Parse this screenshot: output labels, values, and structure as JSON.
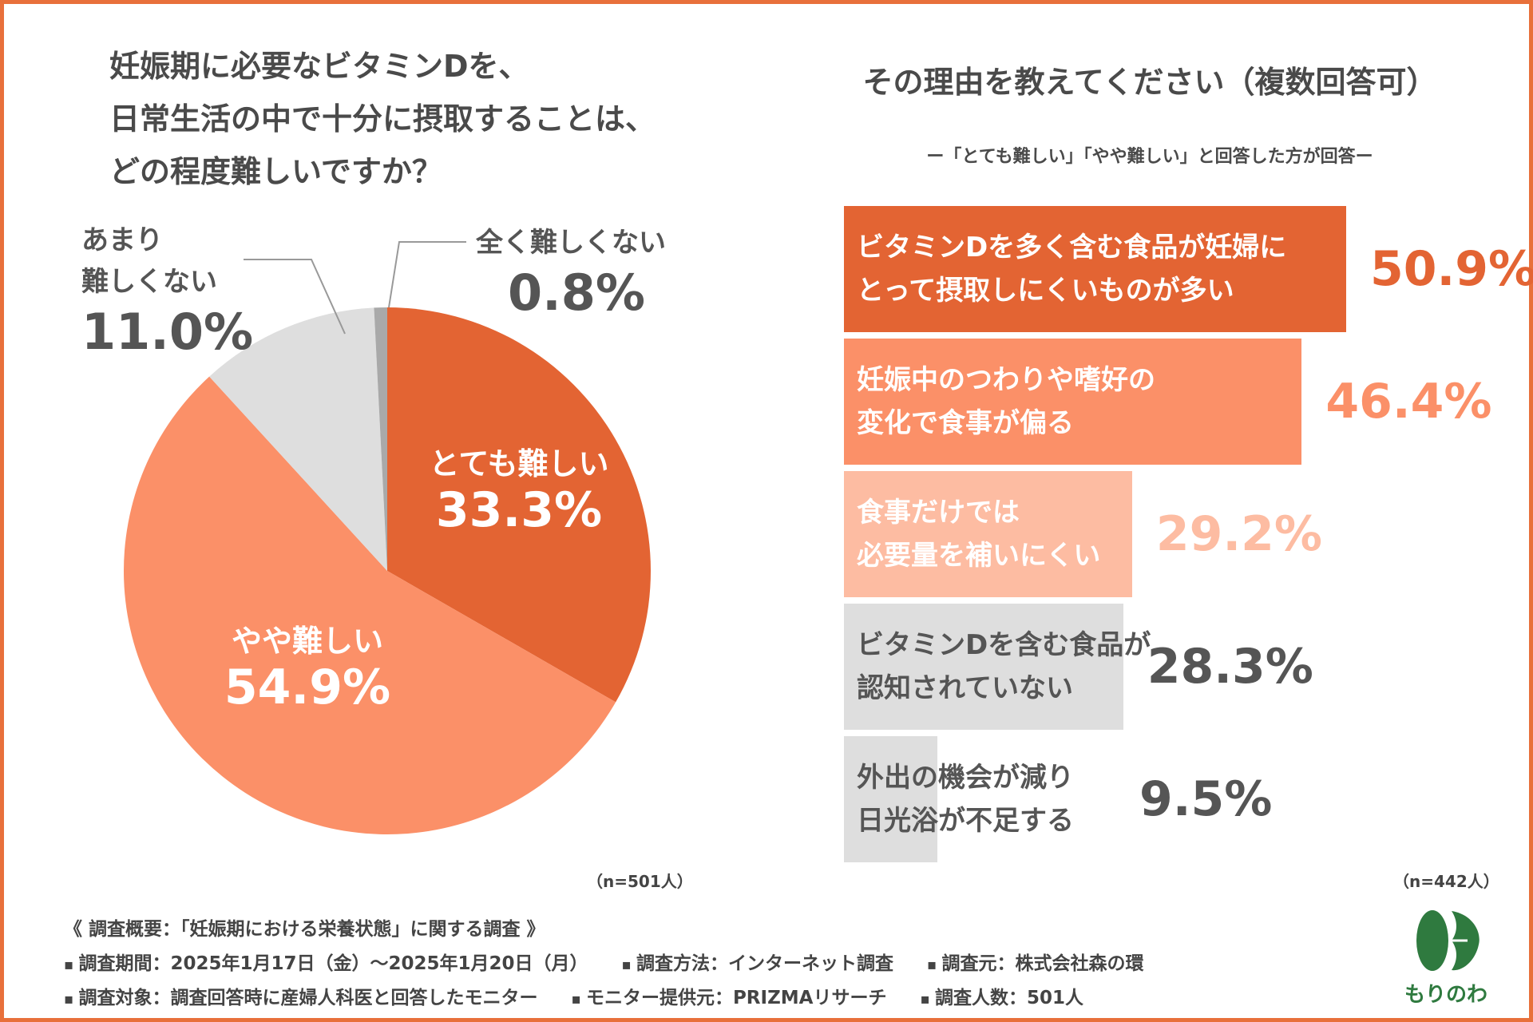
{
  "colors": {
    "frame": "#e8703b",
    "dark_orange": "#e36433",
    "mid_orange": "#fb9068",
    "light_orange": "#fdbca2",
    "gray": "#dedede",
    "dark_gray": "#a9a9a9",
    "text": "#555555",
    "logo_green": "#2f7a3f"
  },
  "left": {
    "title_lines": [
      "妊娠期に必要なビタミンDを、",
      "日常生活の中で十分に摂取することは、",
      "どの程度難しいですか？"
    ],
    "n_note": "（n=501人）"
  },
  "right": {
    "title": "その理由を教えてください（複数回答可）",
    "subtitle": "ー「とても難しい」「やや難しい」と回答した方が回答ー",
    "n_note": "（n=442人）"
  },
  "chart_data": [
    {
      "type": "pie",
      "title": "妊娠期に必要なビタミンDを、日常生活の中で十分に摂取することは、どの程度難しいですか？",
      "start": "12 o'clock, clockwise",
      "slices": [
        {
          "label": "とても難しい",
          "value": 33.3,
          "value_text": "33.3%",
          "color": "#e36433"
        },
        {
          "label": "やや難しい",
          "value": 54.9,
          "value_text": "54.9%",
          "color": "#fb9068"
        },
        {
          "label_lines": [
            "あまり",
            "難しくない"
          ],
          "label": "あまり難しくない",
          "value": 11.0,
          "value_text": "11.0%",
          "color": "#dedede"
        },
        {
          "label": "全く難しくない",
          "value": 0.8,
          "value_text": "0.8%",
          "color": "#a9a9a9"
        }
      ]
    },
    {
      "type": "bar",
      "orientation": "horizontal",
      "title": "その理由を教えてください（複数回答可）",
      "xlim": [
        0,
        50.9
      ],
      "bars": [
        {
          "label_lines": [
            "ビタミンDを多く含む食品が妊婦に",
            "とって摂取しにくいものが多い"
          ],
          "value": 50.9,
          "value_text": "50.9%",
          "color": "#e36433",
          "text_color": "#ffffff",
          "value_color": "#e36433"
        },
        {
          "label_lines": [
            "妊娠中のつわりや嗜好の",
            "変化で食事が偏る"
          ],
          "value": 46.4,
          "value_text": "46.4%",
          "color": "#fb9068",
          "text_color": "#ffffff",
          "value_color": "#fb9068"
        },
        {
          "label_lines": [
            "食事だけでは",
            "必要量を補いにくい"
          ],
          "value": 29.2,
          "value_text": "29.2%",
          "color": "#fdbca2",
          "text_color": "#ffffff",
          "value_color": "#fdbca2"
        },
        {
          "label_lines": [
            "ビタミンDを含む食品が",
            "認知されていない"
          ],
          "value": 28.3,
          "value_text": "28.3%",
          "color": "#dedede",
          "text_color": "#555555",
          "value_color": "#555555"
        },
        {
          "label_lines": [
            "外出の機会が減り",
            "日光浴が不足する"
          ],
          "value": 9.5,
          "value_text": "9.5%",
          "color": "#dedede",
          "text_color": "#555555",
          "value_color": "#555555"
        }
      ]
    }
  ],
  "footer": {
    "heading": "《 調査概要：「妊娠期における栄養状態」に関する調査 》",
    "line1": [
      "調査期間：2025年1月17日（金）～2025年1月20日（月）",
      "調査方法：インターネット調査",
      "調査元：株式会社森の環"
    ],
    "line2": [
      "調査対象：調査回答時に産婦人科医と回答したモニター",
      "モニター提供元：PRIZMAリサーチ",
      "調査人数：501人"
    ]
  },
  "logo": {
    "brand": "もりのわ",
    "icon": "leaf-logo-icon"
  }
}
